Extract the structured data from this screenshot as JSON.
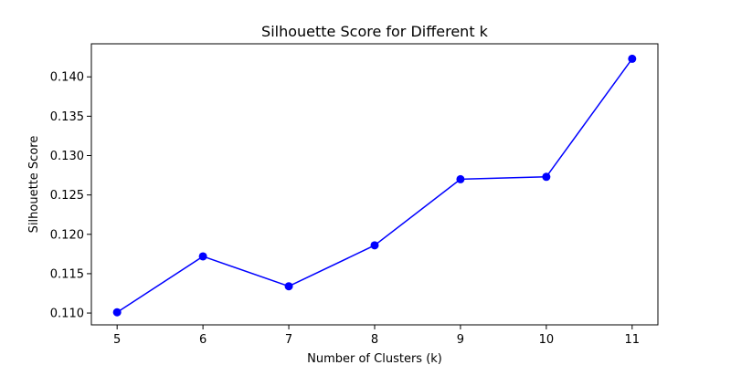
{
  "chart_data": {
    "type": "line",
    "title": "Silhouette Score for Different k",
    "xlabel": "Number of Clusters (k)",
    "ylabel": "Silhouette Score",
    "x": [
      5,
      6,
      7,
      8,
      9,
      10,
      11
    ],
    "series": [
      {
        "values": [
          0.1101,
          0.1172,
          0.1134,
          0.1186,
          0.127,
          0.1273,
          0.1423
        ],
        "color": "#0000ff",
        "marker": "circle"
      }
    ],
    "xlim": [
      4.7,
      11.3
    ],
    "ylim": [
      0.1085,
      0.1442
    ],
    "xticks": [
      5,
      6,
      7,
      8,
      9,
      10,
      11
    ],
    "xtick_labels": [
      "5",
      "6",
      "7",
      "8",
      "9",
      "10",
      "11"
    ],
    "yticks": [
      0.11,
      0.115,
      0.12,
      0.125,
      0.13,
      0.135,
      0.14
    ],
    "ytick_labels": [
      "0.110",
      "0.115",
      "0.120",
      "0.125",
      "0.130",
      "0.135",
      "0.140"
    ],
    "grid": false,
    "legend": false
  }
}
